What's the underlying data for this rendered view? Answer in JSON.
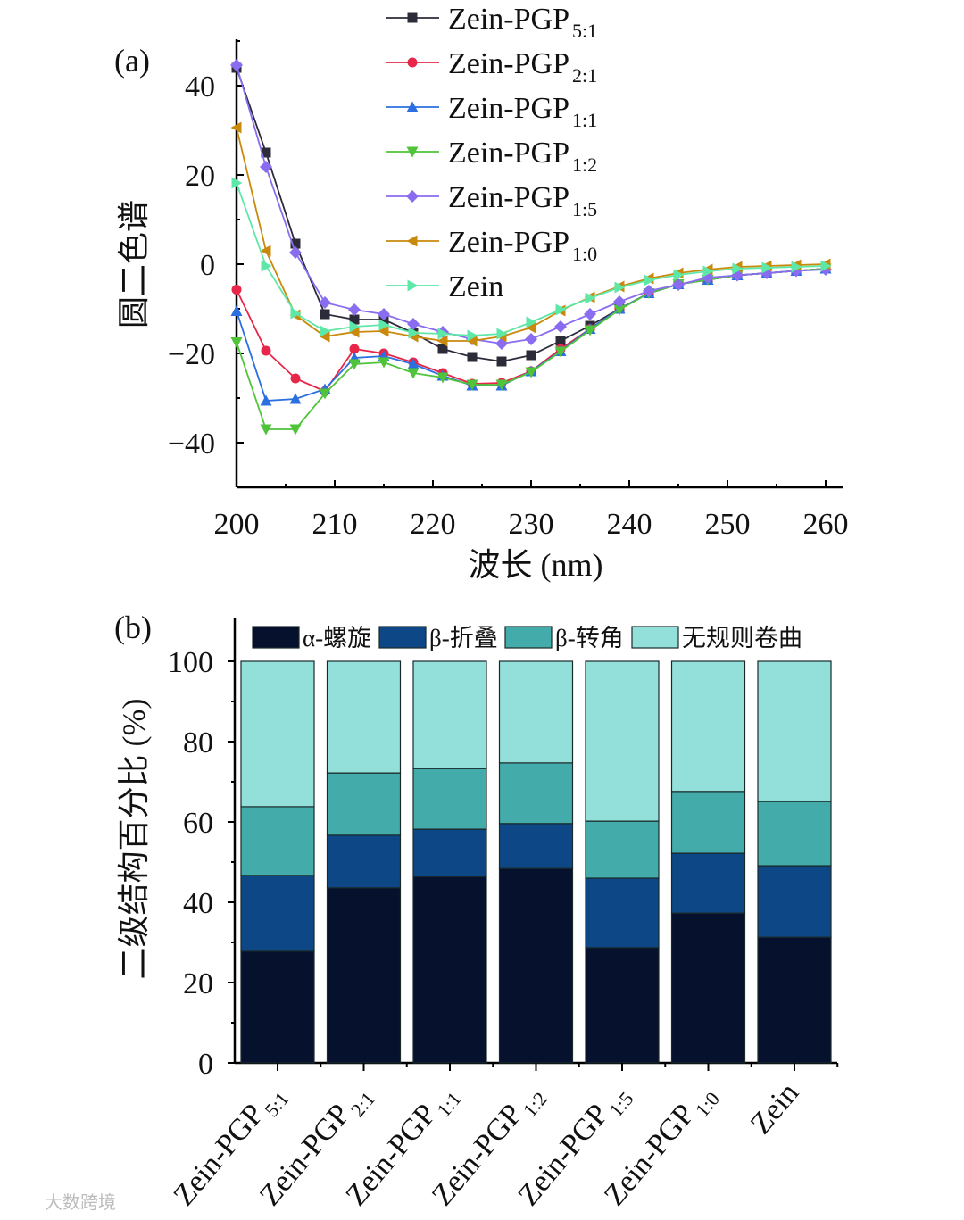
{
  "chart_data": [
    {
      "type": "line",
      "panel_label": "(a)",
      "xlabel": "波长 (nm)",
      "ylabel": "圆二色谱",
      "xlim": [
        200,
        261
      ],
      "ylim": [
        -50,
        50
      ],
      "xticks": [
        200,
        210,
        220,
        230,
        240,
        250,
        260
      ],
      "yticks": [
        -40,
        -20,
        0,
        20,
        40
      ],
      "yticklabels": [
        "−40",
        "−20",
        "0",
        "20",
        "40"
      ],
      "legend_position": "top-right",
      "x": [
        200,
        203,
        206,
        209,
        212,
        215,
        218,
        221,
        224,
        227,
        230,
        233,
        236,
        239,
        242,
        245,
        248,
        251,
        254,
        257,
        260
      ],
      "series": [
        {
          "name": "Zein-PGP",
          "sub": "5:1",
          "color": "#2b2b3a",
          "marker": "square",
          "values": [
            44,
            25,
            4.6,
            -11.2,
            -12.4,
            -12.4,
            -15.4,
            -19,
            -20.8,
            -21.8,
            -20.4,
            -17.2,
            -13.8,
            -10,
            -6.5,
            -4.5,
            -3.5,
            -2.5,
            -2,
            -1.5,
            -1
          ]
        },
        {
          "name": "Zein-PGP",
          "sub": "2:1",
          "color": "#e8264a",
          "marker": "circle",
          "values": [
            -5.7,
            -19.4,
            -25.6,
            -28.5,
            -19,
            -20,
            -22,
            -24.4,
            -26.8,
            -26.6,
            -24,
            -19,
            -14.5,
            -10,
            -6.5,
            -4.5,
            -3.5,
            -2.5,
            -2,
            -1.5,
            -1
          ]
        },
        {
          "name": "Zein-PGP",
          "sub": "1:1",
          "color": "#2b6fe0",
          "marker": "triangle-up",
          "values": [
            -10.5,
            -30.6,
            -30.2,
            -28,
            -21,
            -20.6,
            -22.4,
            -25,
            -27.2,
            -27.2,
            -24,
            -19.5,
            -14.5,
            -10,
            -6.5,
            -4.5,
            -3.5,
            -2.5,
            -2,
            -1.5,
            -1
          ]
        },
        {
          "name": "Zein-PGP",
          "sub": "1:2",
          "color": "#4fc43a",
          "marker": "triangle-down",
          "values": [
            -17.5,
            -37,
            -37,
            -29,
            -22.4,
            -22,
            -24.4,
            -25.4,
            -27,
            -27,
            -24.2,
            -19.6,
            -14.8,
            -10.2,
            -6.5,
            -4.5,
            -3.5,
            -2.5,
            -2,
            -1.5,
            -1
          ]
        },
        {
          "name": "Zein-PGP",
          "sub": "1:5",
          "color": "#8a6cf0",
          "marker": "diamond",
          "values": [
            44.6,
            21.8,
            2.6,
            -8.6,
            -10.2,
            -11.2,
            -13.4,
            -15.2,
            -16.8,
            -17.8,
            -16.8,
            -14,
            -11.2,
            -8.4,
            -6,
            -4.6,
            -3,
            -2.5,
            -2,
            -1.5,
            -1.2
          ]
        },
        {
          "name": "Zein-PGP",
          "sub": "1:0",
          "color": "#c98a0c",
          "marker": "triangle-left",
          "values": [
            30.6,
            3,
            -11.4,
            -16.2,
            -15.2,
            -15,
            -16.2,
            -17.2,
            -17.2,
            -16.2,
            -14.2,
            -10.4,
            -7.4,
            -5,
            -3.2,
            -2,
            -1.2,
            -0.6,
            -0.4,
            -0.2,
            0
          ]
        },
        {
          "name": "Zein",
          "sub": "",
          "color": "#5ee8a8",
          "marker": "triangle-right",
          "values": [
            18.2,
            -0.4,
            -11,
            -15,
            -14,
            -13.6,
            -15.4,
            -15.6,
            -16,
            -15.6,
            -13,
            -10.2,
            -7.6,
            -5.2,
            -3.6,
            -2.4,
            -1.6,
            -1,
            -0.8,
            -0.6,
            -0.4
          ]
        }
      ]
    },
    {
      "type": "bar",
      "stacked": true,
      "panel_label": "(b)",
      "ylabel": "二级结构百分比 (%)",
      "ylim": [
        0,
        100
      ],
      "yticks": [
        0,
        20,
        40,
        60,
        80,
        100
      ],
      "legend_position": "top",
      "categories": [
        {
          "name": "Zein-PGP",
          "sub": "5:1"
        },
        {
          "name": "Zein-PGP",
          "sub": "2:1"
        },
        {
          "name": "Zein-PGP",
          "sub": "1:1"
        },
        {
          "name": "Zein-PGP",
          "sub": "1:2"
        },
        {
          "name": "Zein-PGP",
          "sub": "1:5"
        },
        {
          "name": "Zein-PGP",
          "sub": "1:0"
        },
        {
          "name": "Zein",
          "sub": ""
        }
      ],
      "series": [
        {
          "name": "α-螺旋",
          "color": "#06112e",
          "values": [
            27.8,
            43.6,
            46.4,
            48.4,
            28.7,
            37.3,
            31.3
          ]
        },
        {
          "name": "β-折叠",
          "color": "#0d4785",
          "values": [
            18.9,
            13.1,
            11.8,
            11.2,
            17.3,
            14.9,
            17.8
          ]
        },
        {
          "name": "β-转角",
          "color": "#43aba9",
          "values": [
            17.1,
            15.5,
            15.1,
            15.1,
            14.2,
            15.4,
            16.0
          ]
        },
        {
          "name": "无规则卷曲",
          "color": "#93dfda",
          "values": [
            36.2,
            27.8,
            26.7,
            25.3,
            39.8,
            32.4,
            34.9
          ]
        }
      ]
    }
  ],
  "watermark": "大数跨境"
}
